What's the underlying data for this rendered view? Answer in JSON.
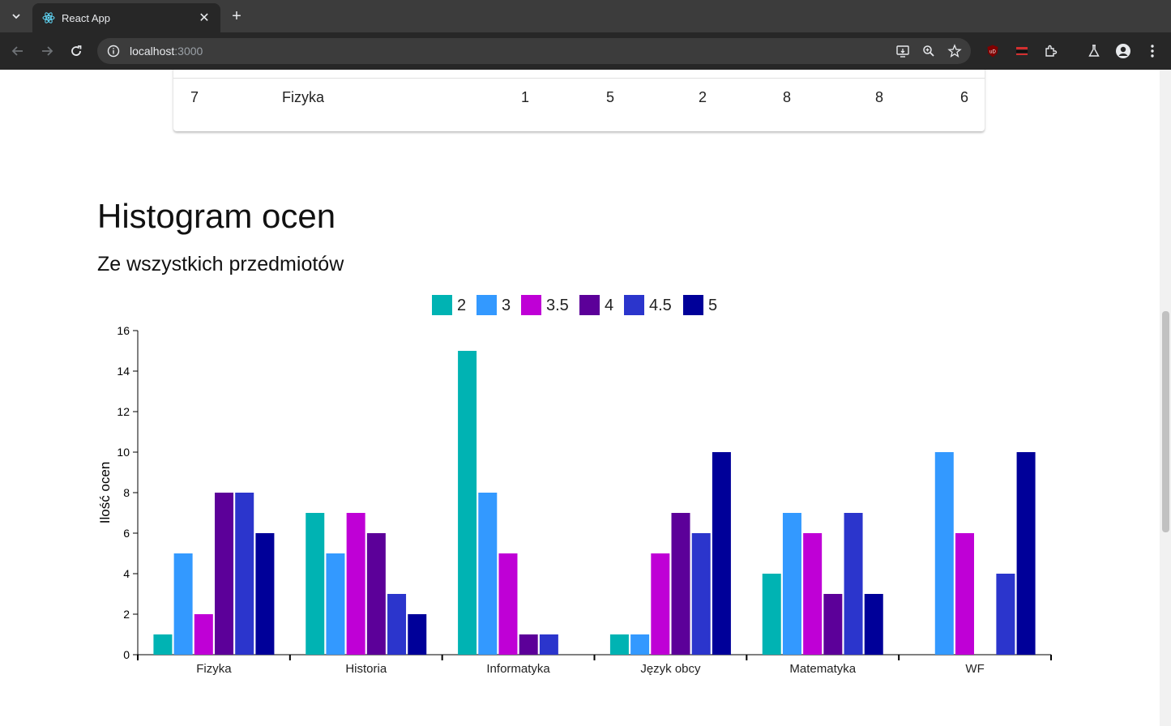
{
  "browser": {
    "tab_title": "React App",
    "url_host": "localhost",
    "url_port": ":3000"
  },
  "table_row": {
    "cells": [
      "7",
      "Fizyka",
      "1",
      "5",
      "2",
      "8",
      "8",
      "6"
    ]
  },
  "page": {
    "title": "Histogram ocen",
    "subtitle": "Ze wszystkich przedmiotów"
  },
  "chart_data": {
    "type": "bar",
    "title": "",
    "xlabel": "",
    "ylabel": "Ilość ocen",
    "ylim": [
      0,
      16
    ],
    "yticks": [
      0,
      2,
      4,
      6,
      8,
      10,
      12,
      14,
      16
    ],
    "grid": false,
    "legend": "top-center",
    "categories": [
      "Fizyka",
      "Historia",
      "Informatyka",
      "Język obcy",
      "Matematyka",
      "WF"
    ],
    "series": [
      {
        "name": "2",
        "color": "#00b3b3",
        "values": [
          1,
          7,
          15,
          1,
          4,
          0
        ]
      },
      {
        "name": "3",
        "color": "#3399ff",
        "values": [
          5,
          5,
          8,
          1,
          7,
          10
        ]
      },
      {
        "name": "3.5",
        "color": "#bf00d6",
        "values": [
          2,
          7,
          5,
          5,
          6,
          6
        ]
      },
      {
        "name": "4",
        "color": "#5c0099",
        "values": [
          8,
          6,
          1,
          7,
          3,
          0
        ]
      },
      {
        "name": "4.5",
        "color": "#2b35cc",
        "values": [
          8,
          3,
          1,
          6,
          7,
          4
        ]
      },
      {
        "name": "5",
        "color": "#000099",
        "values": [
          6,
          2,
          0,
          10,
          3,
          10
        ]
      }
    ]
  }
}
